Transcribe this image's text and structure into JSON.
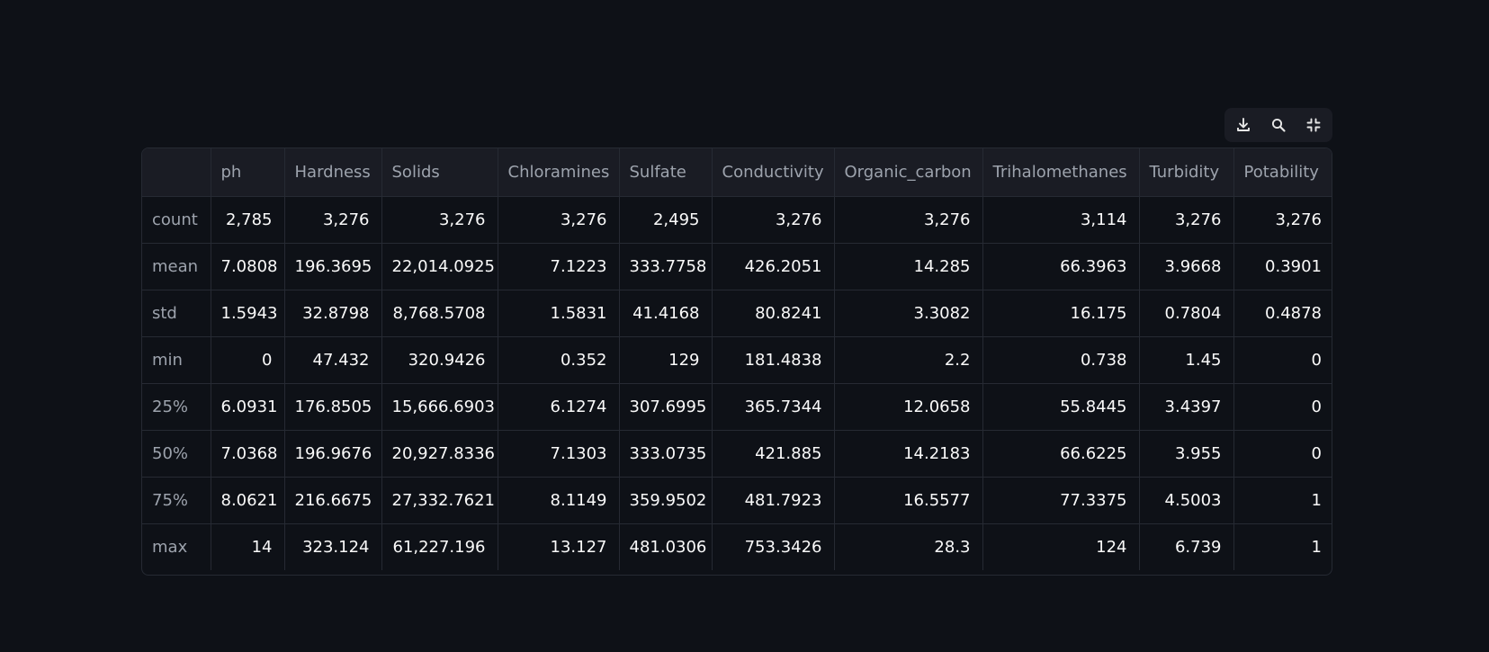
{
  "toolbar": {
    "icons": [
      "download-icon",
      "search-icon",
      "collapse-icon"
    ]
  },
  "table": {
    "columns": [
      "",
      "ph",
      "Hardness",
      "Solids",
      "Chloramines",
      "Sulfate",
      "Conductivity",
      "Organic_carbon",
      "Trihalomethanes",
      "Turbidity",
      "Potability"
    ],
    "rows": [
      {
        "label": "count",
        "values": [
          "2,785",
          "3,276",
          "3,276",
          "3,276",
          "2,495",
          "3,276",
          "3,276",
          "3,114",
          "3,276",
          "3,276"
        ]
      },
      {
        "label": "mean",
        "values": [
          "7.0808",
          "196.3695",
          "22,014.0925",
          "7.1223",
          "333.7758",
          "426.2051",
          "14.285",
          "66.3963",
          "3.9668",
          "0.3901"
        ]
      },
      {
        "label": "std",
        "values": [
          "1.5943",
          "32.8798",
          "8,768.5708",
          "1.5831",
          "41.4168",
          "80.8241",
          "3.3082",
          "16.175",
          "0.7804",
          "0.4878"
        ]
      },
      {
        "label": "min",
        "values": [
          "0",
          "47.432",
          "320.9426",
          "0.352",
          "129",
          "181.4838",
          "2.2",
          "0.738",
          "1.45",
          "0"
        ]
      },
      {
        "label": "25%",
        "values": [
          "6.0931",
          "176.8505",
          "15,666.6903",
          "6.1274",
          "307.6995",
          "365.7344",
          "12.0658",
          "55.8445",
          "3.4397",
          "0"
        ]
      },
      {
        "label": "50%",
        "values": [
          "7.0368",
          "196.9676",
          "20,927.8336",
          "7.1303",
          "333.0735",
          "421.885",
          "14.2183",
          "66.6225",
          "3.955",
          "0"
        ]
      },
      {
        "label": "75%",
        "values": [
          "8.0621",
          "216.6675",
          "27,332.7621",
          "8.1149",
          "359.9502",
          "481.7923",
          "16.5577",
          "77.3375",
          "4.5003",
          "1"
        ]
      },
      {
        "label": "max",
        "values": [
          "14",
          "323.124",
          "61,227.196",
          "13.127",
          "481.0306",
          "753.3426",
          "28.3",
          "124",
          "6.739",
          "1"
        ]
      }
    ]
  }
}
